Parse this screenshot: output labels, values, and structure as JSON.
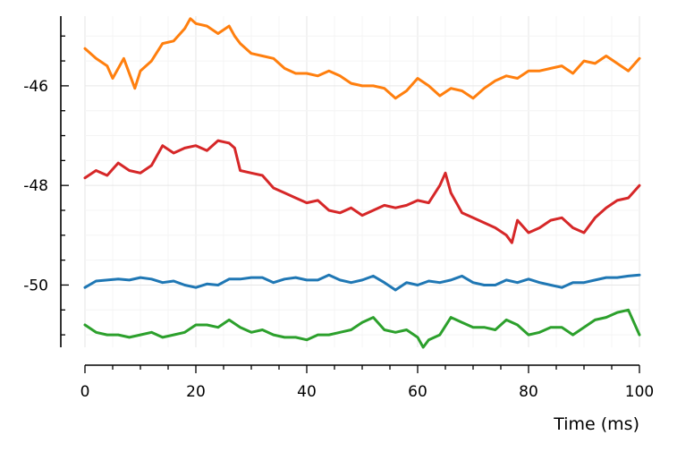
{
  "chart_data": {
    "type": "line",
    "title": "",
    "xlabel": "Time (ms)",
    "ylabel": "",
    "xlim": [
      0,
      100
    ],
    "ylim": [
      -51.25,
      -44.6
    ],
    "x_ticks": [
      0,
      20,
      40,
      60,
      80,
      100
    ],
    "x_tick_labels": [
      "0",
      "20",
      "40",
      "60",
      "80",
      "100"
    ],
    "y_ticks": [
      -50,
      -48,
      -46
    ],
    "y_tick_labels": [
      "-50",
      "-48",
      "-46"
    ],
    "grid": true,
    "legend": "none",
    "series": [
      {
        "color": "#ff7f0e",
        "x": [
          0,
          2,
          4,
          5,
          7,
          9,
          10,
          12,
          14,
          16,
          18,
          19,
          20,
          22,
          24,
          26,
          27,
          28,
          30,
          32,
          34,
          36,
          38,
          40,
          42,
          44,
          46,
          48,
          50,
          52,
          54,
          56,
          58,
          60,
          62,
          64,
          66,
          68,
          70,
          72,
          74,
          76,
          78,
          80,
          82,
          84,
          86,
          88,
          90,
          92,
          94,
          96,
          98,
          100
        ],
        "y": [
          -45.25,
          -45.45,
          -45.6,
          -45.85,
          -45.45,
          -46.05,
          -45.7,
          -45.5,
          -45.15,
          -45.1,
          -44.85,
          -44.65,
          -44.75,
          -44.8,
          -44.95,
          -44.8,
          -45.0,
          -45.15,
          -45.35,
          -45.4,
          -45.45,
          -45.65,
          -45.75,
          -45.75,
          -45.8,
          -45.7,
          -45.8,
          -45.95,
          -46.0,
          -46.0,
          -46.05,
          -46.25,
          -46.1,
          -45.85,
          -46.0,
          -46.2,
          -46.05,
          -46.1,
          -46.25,
          -46.05,
          -45.9,
          -45.8,
          -45.85,
          -45.7,
          -45.7,
          -45.65,
          -45.6,
          -45.75,
          -45.5,
          -45.55,
          -45.4,
          -45.55,
          -45.7,
          -45.45
        ]
      },
      {
        "color": "#d62728",
        "x": [
          0,
          2,
          4,
          6,
          8,
          10,
          12,
          14,
          16,
          18,
          20,
          22,
          24,
          26,
          27,
          28,
          30,
          32,
          34,
          36,
          38,
          40,
          42,
          44,
          46,
          48,
          50,
          52,
          54,
          56,
          58,
          60,
          62,
          64,
          65,
          66,
          68,
          70,
          72,
          74,
          76,
          77,
          78,
          80,
          82,
          84,
          86,
          88,
          90,
          92,
          94,
          96,
          98,
          100
        ],
        "y": [
          -47.85,
          -47.7,
          -47.8,
          -47.55,
          -47.7,
          -47.75,
          -47.6,
          -47.2,
          -47.35,
          -47.25,
          -47.2,
          -47.3,
          -47.1,
          -47.15,
          -47.25,
          -47.7,
          -47.75,
          -47.8,
          -48.05,
          -48.15,
          -48.25,
          -48.35,
          -48.3,
          -48.5,
          -48.55,
          -48.45,
          -48.6,
          -48.5,
          -48.4,
          -48.45,
          -48.4,
          -48.3,
          -48.35,
          -48.0,
          -47.75,
          -48.15,
          -48.55,
          -48.65,
          -48.75,
          -48.85,
          -49.0,
          -49.15,
          -48.7,
          -48.95,
          -48.85,
          -48.7,
          -48.65,
          -48.85,
          -48.95,
          -48.65,
          -48.45,
          -48.3,
          -48.25,
          -48.0
        ]
      },
      {
        "color": "#1f77b4",
        "x": [
          0,
          2,
          4,
          6,
          8,
          10,
          12,
          14,
          16,
          18,
          20,
          22,
          24,
          26,
          28,
          30,
          32,
          34,
          36,
          38,
          40,
          42,
          44,
          46,
          48,
          50,
          52,
          54,
          56,
          58,
          60,
          62,
          64,
          66,
          68,
          70,
          72,
          74,
          76,
          78,
          80,
          82,
          84,
          86,
          88,
          90,
          92,
          94,
          96,
          98,
          100
        ],
        "y": [
          -50.05,
          -49.92,
          -49.9,
          -49.88,
          -49.9,
          -49.85,
          -49.88,
          -49.95,
          -49.92,
          -50.0,
          -50.05,
          -49.98,
          -50.0,
          -49.88,
          -49.88,
          -49.85,
          -49.85,
          -49.95,
          -49.88,
          -49.85,
          -49.9,
          -49.9,
          -49.8,
          -49.9,
          -49.95,
          -49.9,
          -49.82,
          -49.95,
          -50.1,
          -49.95,
          -50.0,
          -49.92,
          -49.95,
          -49.9,
          -49.82,
          -49.95,
          -50.0,
          -50.0,
          -49.9,
          -49.95,
          -49.88,
          -49.95,
          -50.0,
          -50.05,
          -49.95,
          -49.95,
          -49.9,
          -49.85,
          -49.85,
          -49.82,
          -49.8
        ]
      },
      {
        "color": "#2ca02c",
        "x": [
          0,
          2,
          4,
          6,
          8,
          10,
          12,
          14,
          16,
          18,
          20,
          22,
          24,
          26,
          28,
          30,
          32,
          34,
          36,
          38,
          40,
          42,
          44,
          46,
          48,
          50,
          52,
          54,
          56,
          58,
          60,
          61,
          62,
          64,
          66,
          68,
          70,
          72,
          74,
          76,
          78,
          80,
          82,
          84,
          86,
          88,
          90,
          92,
          94,
          96,
          98,
          100
        ],
        "y": [
          -50.8,
          -50.95,
          -51.0,
          -51.0,
          -51.05,
          -51.0,
          -50.95,
          -51.05,
          -51.0,
          -50.95,
          -50.8,
          -50.8,
          -50.85,
          -50.7,
          -50.85,
          -50.95,
          -50.9,
          -51.0,
          -51.05,
          -51.05,
          -51.1,
          -51.0,
          -51.0,
          -50.95,
          -50.9,
          -50.75,
          -50.65,
          -50.9,
          -50.95,
          -50.9,
          -51.05,
          -51.25,
          -51.1,
          -51.0,
          -50.65,
          -50.75,
          -50.85,
          -50.85,
          -50.9,
          -50.7,
          -50.8,
          -51.0,
          -50.95,
          -50.85,
          -50.85,
          -51.0,
          -50.85,
          -50.7,
          -50.65,
          -50.55,
          -50.5,
          -51.0
        ]
      }
    ]
  }
}
